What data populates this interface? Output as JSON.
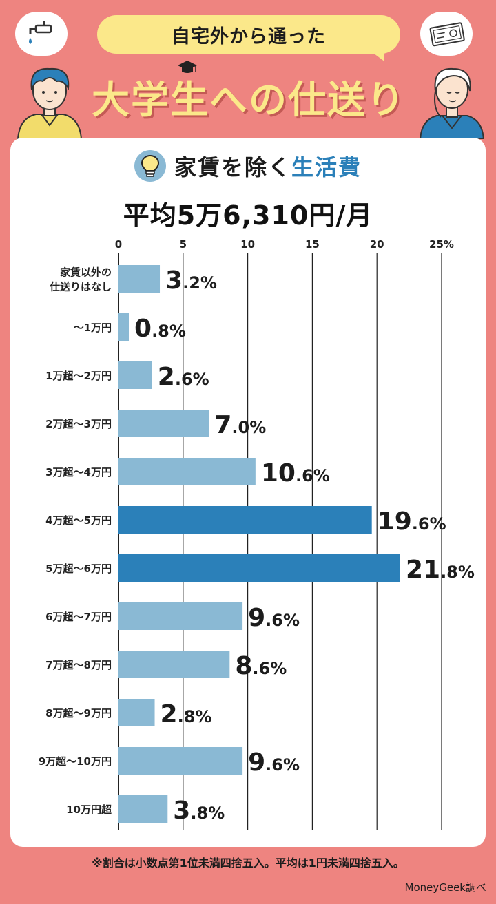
{
  "header": {
    "bubble_text": "自宅外から通った",
    "headline": "大学生への仕送り"
  },
  "subtitle": {
    "prefix": "家賃を除く",
    "accent": "生活費"
  },
  "average": "平均5万6,310円/月",
  "footnote": "※割合は小数点第1位未満四捨五入。平均は1円未満四捨五入。",
  "credit": "MoneyGeek調べ",
  "colors": {
    "background": "#ee8480",
    "bar_normal": "#8ab9d4",
    "bar_highlight": "#2b80b9",
    "accent": "#2b80b9",
    "title_yellow": "#fbe88a"
  },
  "chart_data": {
    "type": "bar",
    "orientation": "horizontal",
    "xlim": [
      0,
      25
    ],
    "ticks": [
      "0",
      "5",
      "10",
      "15",
      "20",
      "25%"
    ],
    "tick_values": [
      0,
      5,
      10,
      15,
      20,
      25
    ],
    "grid": true,
    "categories": [
      [
        "家賃以外の",
        "仕送りはなし"
      ],
      [
        "〜1万円"
      ],
      [
        "1万超〜2万円"
      ],
      [
        "2万超〜3万円"
      ],
      [
        "3万超〜4万円"
      ],
      [
        "4万超〜5万円"
      ],
      [
        "5万超〜6万円"
      ],
      [
        "6万超〜7万円"
      ],
      [
        "7万超〜8万円"
      ],
      [
        "8万超〜9万円"
      ],
      [
        "9万超〜10万円"
      ],
      [
        "10万円超"
      ]
    ],
    "values": [
      3.2,
      0.8,
      2.6,
      7.0,
      10.6,
      19.6,
      21.8,
      9.6,
      8.6,
      2.8,
      9.6,
      3.8
    ],
    "labels": [
      "3.2%",
      "0.8%",
      "2.6%",
      "7.0%",
      "10.6%",
      "19.6%",
      "21.8%",
      "9.6%",
      "8.6%",
      "2.8%",
      "9.6%",
      "3.8%"
    ],
    "highlight": [
      false,
      false,
      false,
      false,
      false,
      true,
      true,
      false,
      false,
      false,
      false,
      false
    ],
    "unit": "%"
  }
}
